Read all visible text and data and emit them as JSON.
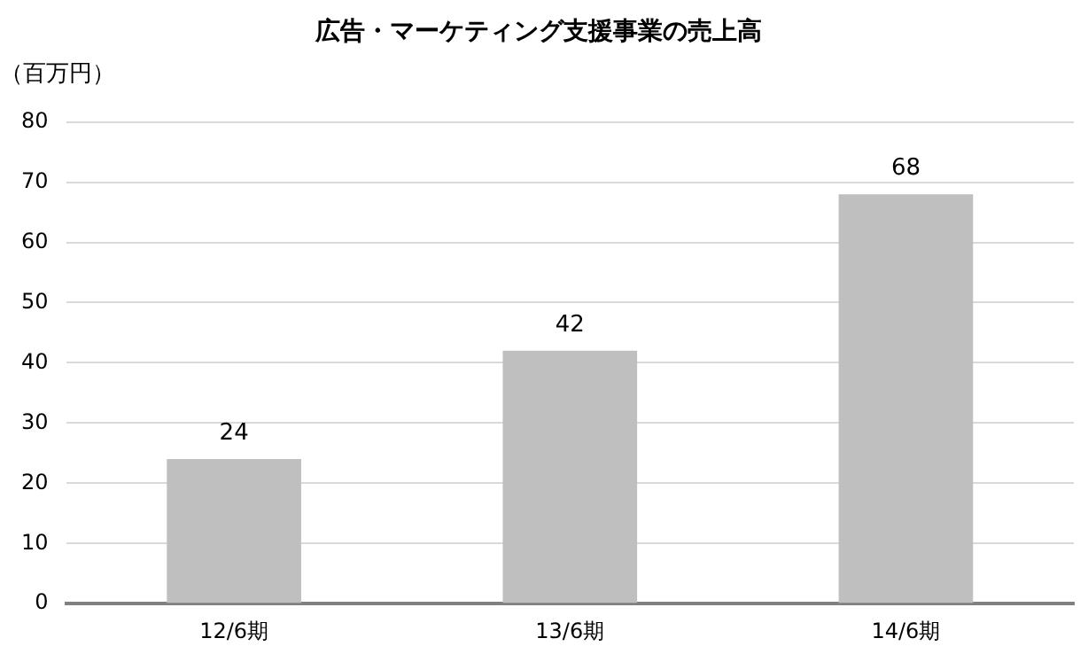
{
  "chart_data": {
    "type": "bar",
    "title": "広告・マーケティング支援事業の売上高",
    "ylabel": "（百万円）",
    "categories": [
      "12/6期",
      "13/6期",
      "14/6期"
    ],
    "values": [
      24,
      42,
      68
    ],
    "color": "#bfbfbf",
    "ylim": [
      0,
      80
    ],
    "yticks": [
      0,
      10,
      20,
      30,
      40,
      50,
      60,
      70,
      80
    ],
    "grid": "y",
    "data_labels": true
  }
}
